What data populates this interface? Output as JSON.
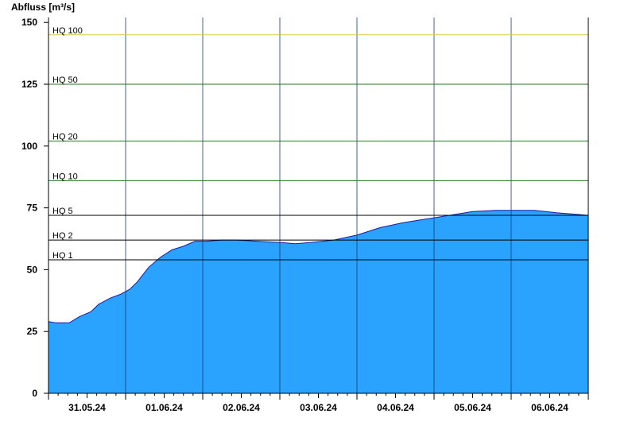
{
  "chart_data": {
    "type": "area",
    "ylabel": "Abfluss [m³/s]",
    "xlabel": "",
    "title": "",
    "ylim": [
      0,
      152
    ],
    "yticks": [
      0,
      25,
      50,
      75,
      100,
      125,
      150
    ],
    "xlim": [
      0,
      7
    ],
    "xtick_labels": [
      "31.05.24",
      "01.06.24",
      "02.06.24",
      "03.06.24",
      "04.06.24",
      "05.06.24",
      "06.06.24"
    ],
    "grid": false,
    "fill_color": "#29a3ff",
    "line_color": "#1a1aa0",
    "thresholds": [
      {
        "name": "HQ 1",
        "value": 54,
        "color": "#000000"
      },
      {
        "name": "HQ 2",
        "value": 62,
        "color": "#000000"
      },
      {
        "name": "HQ 5",
        "value": 72,
        "color": "#000000"
      },
      {
        "name": "HQ 10",
        "value": 86,
        "color": "#1e7a1e"
      },
      {
        "name": "HQ 20",
        "value": 102,
        "color": "#1e7a1e"
      },
      {
        "name": "HQ 50",
        "value": 125,
        "color": "#1e7a1e"
      },
      {
        "name": "HQ 100",
        "value": 145,
        "color": "#d8c94a"
      }
    ],
    "series": [
      {
        "x": [
          0,
          0.1,
          0.27,
          0.4,
          0.55,
          0.65,
          0.8,
          0.93,
          1.05,
          1.15,
          1.3,
          1.45,
          1.6,
          1.75,
          1.9,
          2.05,
          2.25,
          2.45,
          2.7,
          3.0,
          3.2,
          3.4,
          3.7,
          4.0,
          4.3,
          4.6,
          4.8,
          5.0,
          5.2,
          5.4,
          5.5,
          5.8,
          6.1,
          6.3,
          6.6,
          6.8,
          7.0
        ],
        "y": [
          29,
          28.5,
          28.5,
          31,
          33,
          36,
          38.5,
          40,
          42,
          45,
          51,
          55,
          58,
          59.5,
          61.5,
          61.5,
          62,
          62,
          61.5,
          61,
          60.5,
          61,
          62,
          64,
          67,
          69,
          70,
          71,
          72,
          73,
          73.5,
          74,
          74,
          74,
          73,
          72.5,
          72
        ]
      }
    ]
  }
}
